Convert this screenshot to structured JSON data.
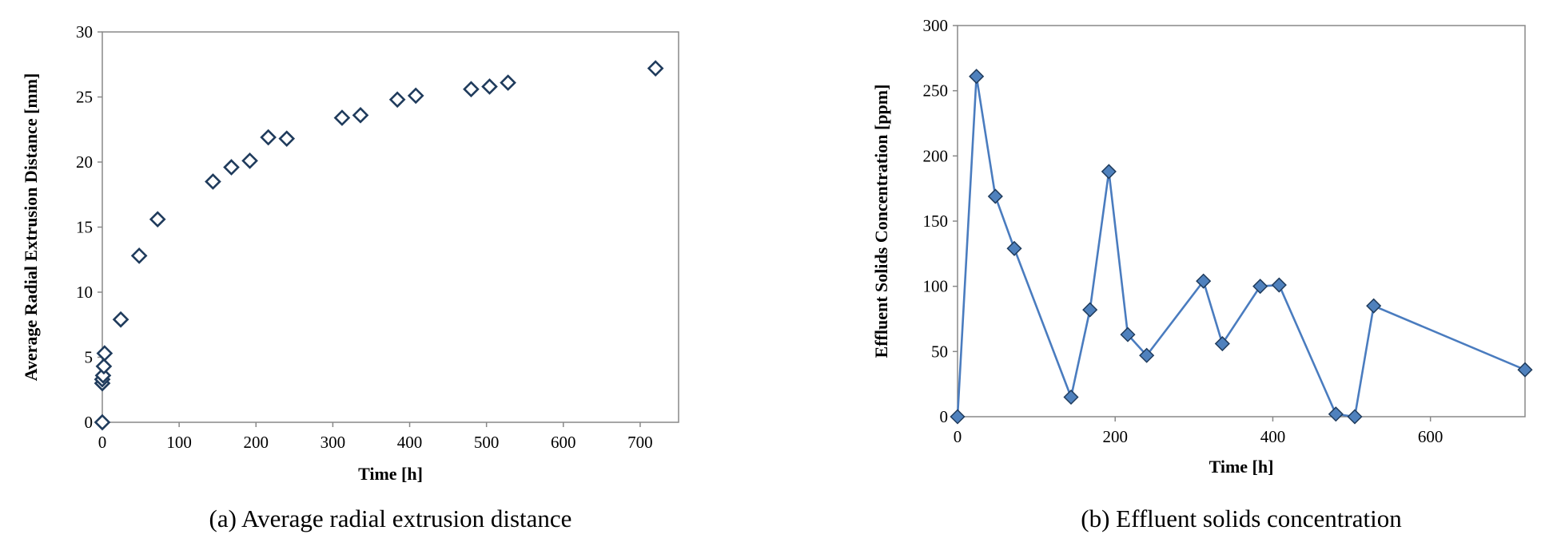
{
  "chart_data": [
    {
      "type": "scatter",
      "caption": "(a) Average radial extrusion distance",
      "xlabel": "Time [h]",
      "ylabel": "Average Radial Extrusion Distance [mm]",
      "xlim": [
        0,
        750
      ],
      "ylim": [
        0,
        30
      ],
      "xticks": [
        0,
        100,
        200,
        300,
        400,
        500,
        600,
        700
      ],
      "yticks": [
        0,
        5,
        10,
        15,
        20,
        25,
        30
      ],
      "grid": false,
      "marker": "hollow-diamond",
      "colors": {
        "marker_stroke": "#1f3b5c",
        "frame": "#888888"
      },
      "x": [
        0,
        0,
        0,
        1,
        2,
        3,
        24,
        48,
        72,
        144,
        168,
        192,
        216,
        240,
        312,
        336,
        384,
        408,
        480,
        504,
        528,
        720
      ],
      "y": [
        0,
        3.0,
        3.3,
        3.6,
        4.3,
        5.3,
        7.9,
        12.8,
        15.6,
        18.5,
        19.6,
        20.1,
        21.9,
        21.8,
        23.4,
        23.6,
        24.8,
        25.1,
        25.6,
        25.8,
        26.1,
        27.2
      ]
    },
    {
      "type": "line",
      "caption": "(b) Effluent solids concentration",
      "xlabel": "Time [h]",
      "ylabel": "Effluent Solids Concentration [ppm]",
      "xlim": [
        0,
        720
      ],
      "ylim": [
        0,
        300
      ],
      "xticks": [
        0,
        200,
        400,
        600
      ],
      "yticks": [
        0,
        50,
        100,
        150,
        200,
        250,
        300
      ],
      "grid": false,
      "marker": "filled-diamond",
      "colors": {
        "line": "#4a7cbf",
        "marker_fill": "#4f81bd",
        "marker_stroke": "#1f3b5c",
        "frame": "#888888"
      },
      "x": [
        0,
        24,
        48,
        72,
        144,
        168,
        192,
        216,
        240,
        312,
        336,
        384,
        408,
        480,
        504,
        528,
        720
      ],
      "y": [
        0,
        261,
        169,
        129,
        15,
        82,
        188,
        63,
        47,
        104,
        56,
        100,
        101,
        2,
        0,
        85,
        36
      ]
    }
  ]
}
